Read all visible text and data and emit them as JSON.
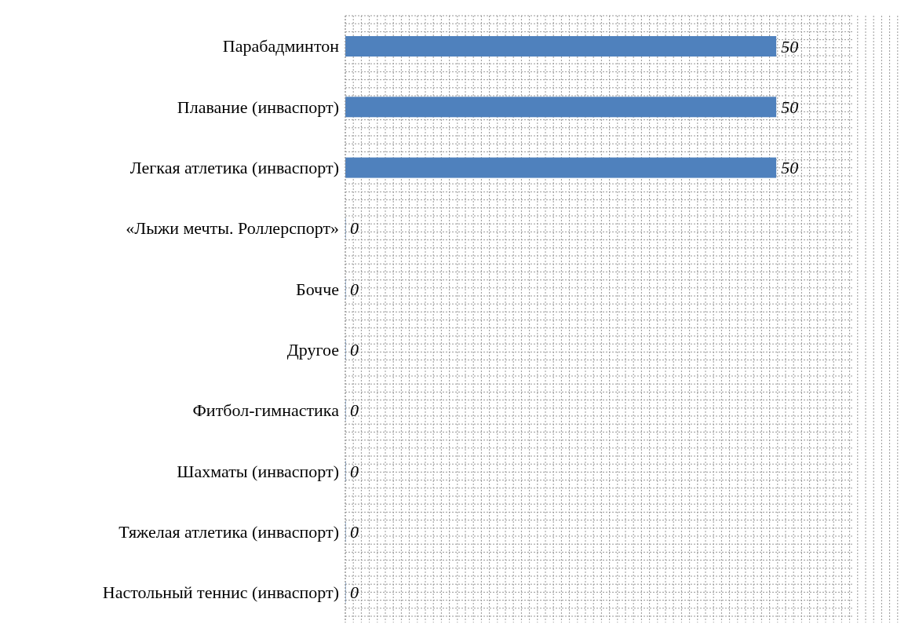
{
  "chart_data": {
    "type": "bar",
    "orientation": "horizontal",
    "categories": [
      "Парабадминтон",
      "Плавание (инваспорт)",
      "Легкая атлетика (инваспорт)",
      "«Лыжи мечты. Роллерспорт»",
      "Бочче",
      "Другое",
      "Фитбол-гимнастика",
      "Шахматы (инваспорт)",
      "Тяжелая атлетика (инваспорт)",
      "Настольный теннис (инваспорт)"
    ],
    "values": [
      50,
      50,
      50,
      0,
      0,
      0,
      0,
      0,
      0,
      0
    ],
    "color": "#4f81bd",
    "data_labels": true,
    "grid": true
  }
}
